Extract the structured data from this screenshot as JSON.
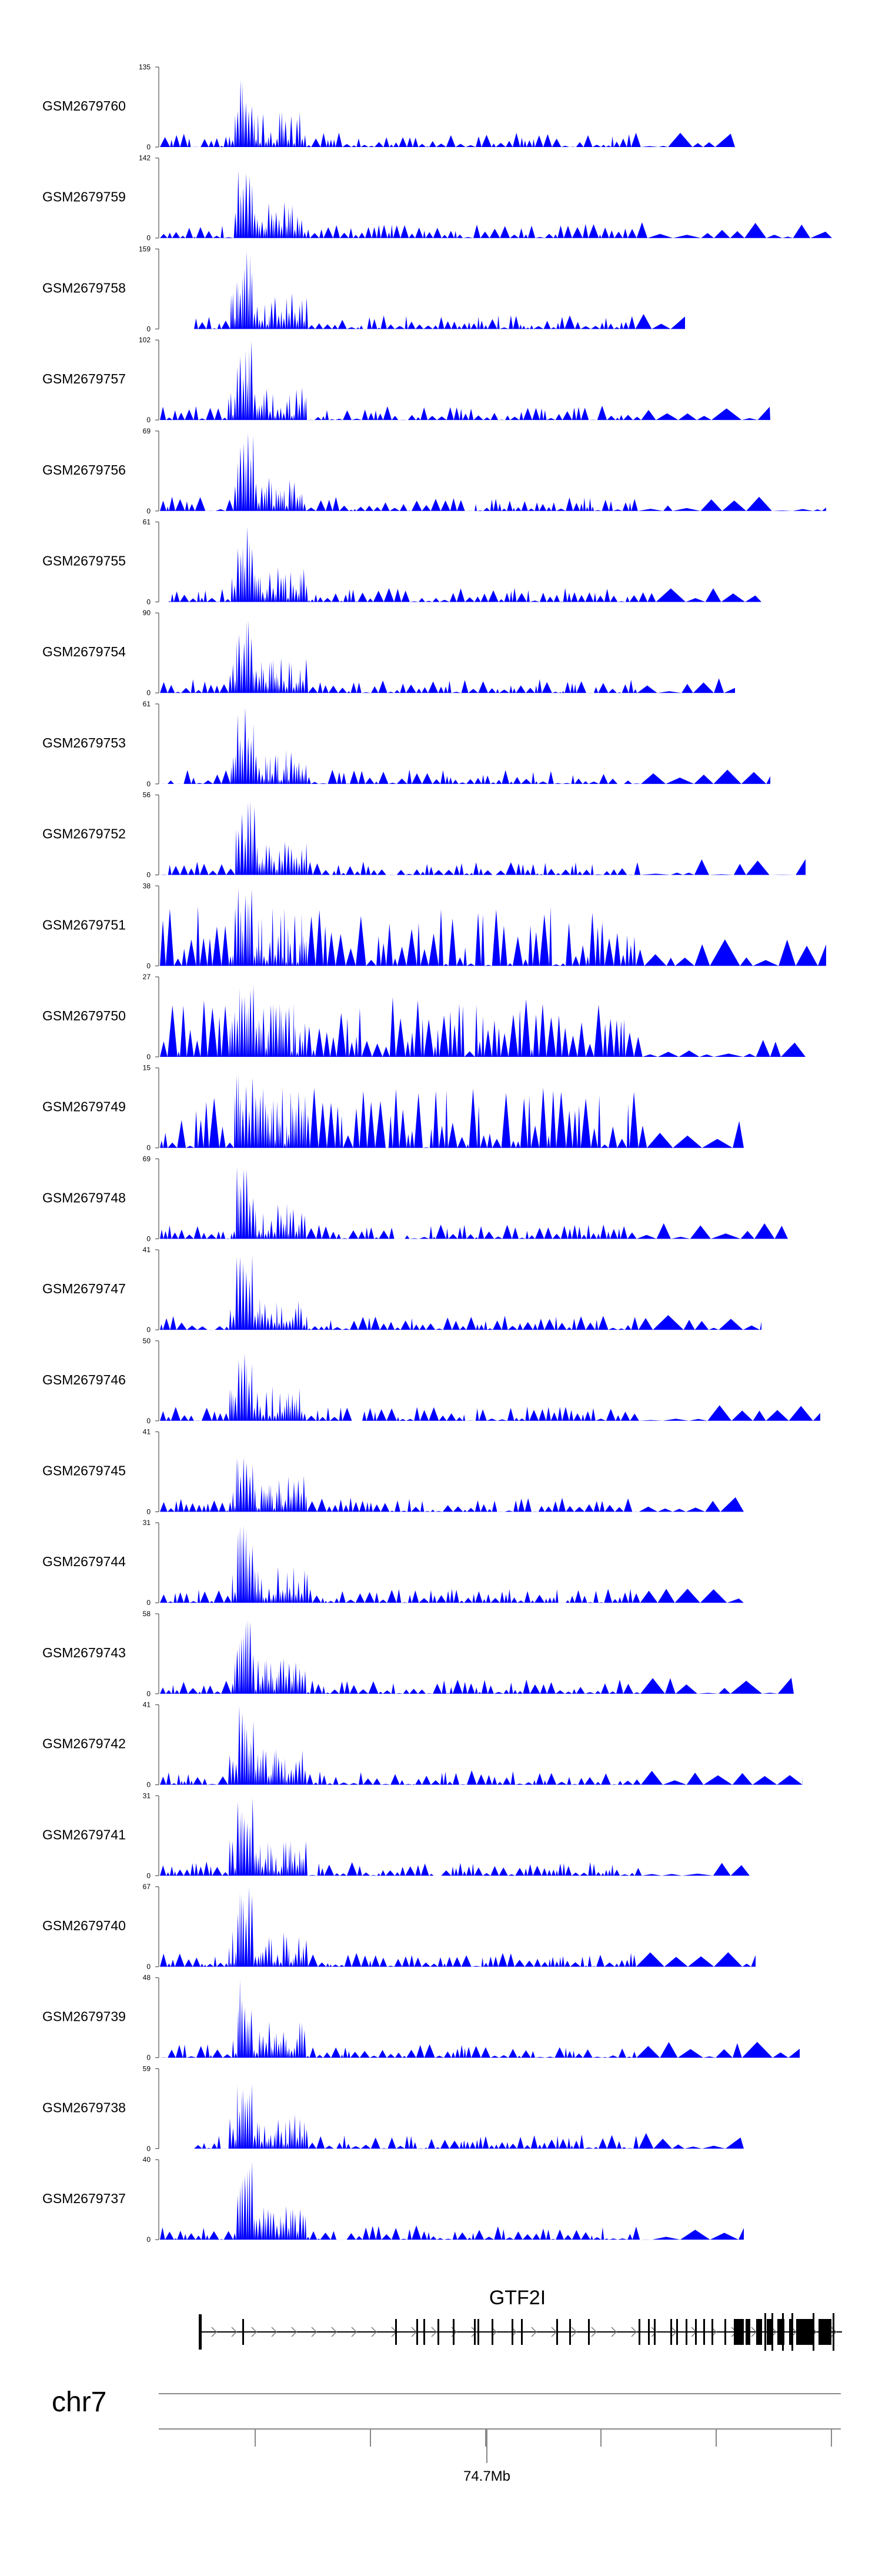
{
  "chart_data": {
    "type": "area",
    "tracks": [
      {
        "name": "GSM2679760",
        "ymax": "135",
        "ymin": "0"
      },
      {
        "name": "GSM2679759",
        "ymax": "142",
        "ymin": "0"
      },
      {
        "name": "GSM2679758",
        "ymax": "159",
        "ymin": "0"
      },
      {
        "name": "GSM2679757",
        "ymax": "102",
        "ymin": "0"
      },
      {
        "name": "GSM2679756",
        "ymax": "69",
        "ymin": "0"
      },
      {
        "name": "GSM2679755",
        "ymax": "61",
        "ymin": "0"
      },
      {
        "name": "GSM2679754",
        "ymax": "90",
        "ymin": "0"
      },
      {
        "name": "GSM2679753",
        "ymax": "61",
        "ymin": "0"
      },
      {
        "name": "GSM2679752",
        "ymax": "56",
        "ymin": "0"
      },
      {
        "name": "GSM2679751",
        "ymax": "38",
        "ymin": "0"
      },
      {
        "name": "GSM2679750",
        "ymax": "27",
        "ymin": "0"
      },
      {
        "name": "GSM2679749",
        "ymax": "15",
        "ymin": "0"
      },
      {
        "name": "GSM2679748",
        "ymax": "69",
        "ymin": "0"
      },
      {
        "name": "GSM2679747",
        "ymax": "41",
        "ymin": "0"
      },
      {
        "name": "GSM2679746",
        "ymax": "50",
        "ymin": "0"
      },
      {
        "name": "GSM2679745",
        "ymax": "41",
        "ymin": "0"
      },
      {
        "name": "GSM2679744",
        "ymax": "31",
        "ymin": "0"
      },
      {
        "name": "GSM2679743",
        "ymax": "58",
        "ymin": "0"
      },
      {
        "name": "GSM2679742",
        "ymax": "41",
        "ymin": "0"
      },
      {
        "name": "GSM2679741",
        "ymax": "31",
        "ymin": "0"
      },
      {
        "name": "GSM2679740",
        "ymax": "67",
        "ymin": "0"
      },
      {
        "name": "GSM2679739",
        "ymax": "48",
        "ymin": "0"
      },
      {
        "name": "GSM2679738",
        "ymax": "59",
        "ymin": "0"
      },
      {
        "name": "GSM2679737",
        "ymax": "40",
        "ymin": "0"
      }
    ],
    "gene": {
      "name": "GTF2I"
    },
    "chromosome": "chr7",
    "axis_label": "74.7Mb",
    "colors": {
      "fill": "#0000ff",
      "axis": "#555555",
      "gene": "#000000",
      "ideogram": "#888888"
    }
  }
}
